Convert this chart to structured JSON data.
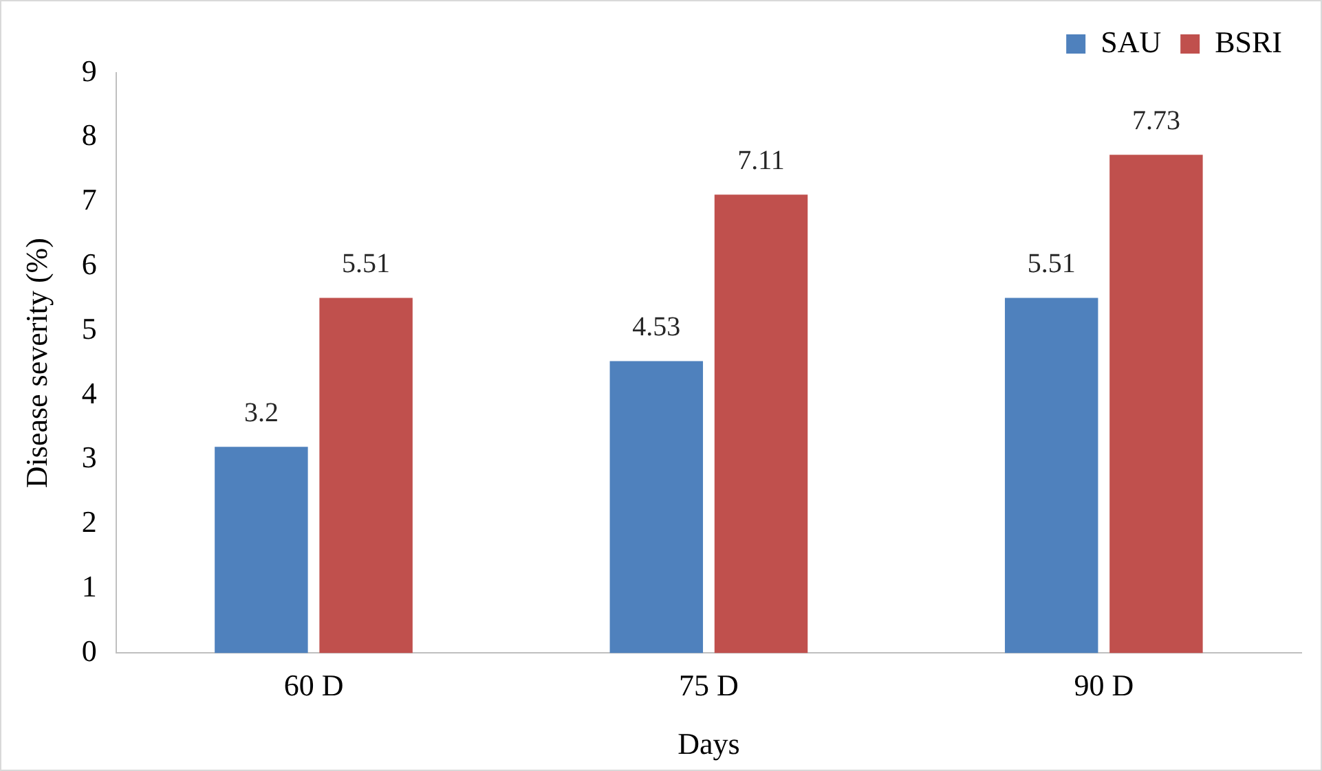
{
  "chart_data": {
    "type": "bar",
    "xlabel": "Days",
    "ylabel": "Disease severity (%)",
    "categories": [
      "60 D",
      "75 D",
      "90 D"
    ],
    "series": [
      {
        "name": "SAU",
        "color": "#4f81bd",
        "values": [
          3.2,
          4.53,
          5.51
        ]
      },
      {
        "name": "BSRI",
        "color": "#c0504d",
        "values": [
          5.51,
          7.11,
          7.73
        ]
      }
    ],
    "ylim": [
      0,
      9
    ],
    "yticks": [
      0,
      1,
      2,
      3,
      4,
      5,
      6,
      7,
      8,
      9
    ],
    "grid": false,
    "legend": "top right",
    "data_labels": true
  }
}
